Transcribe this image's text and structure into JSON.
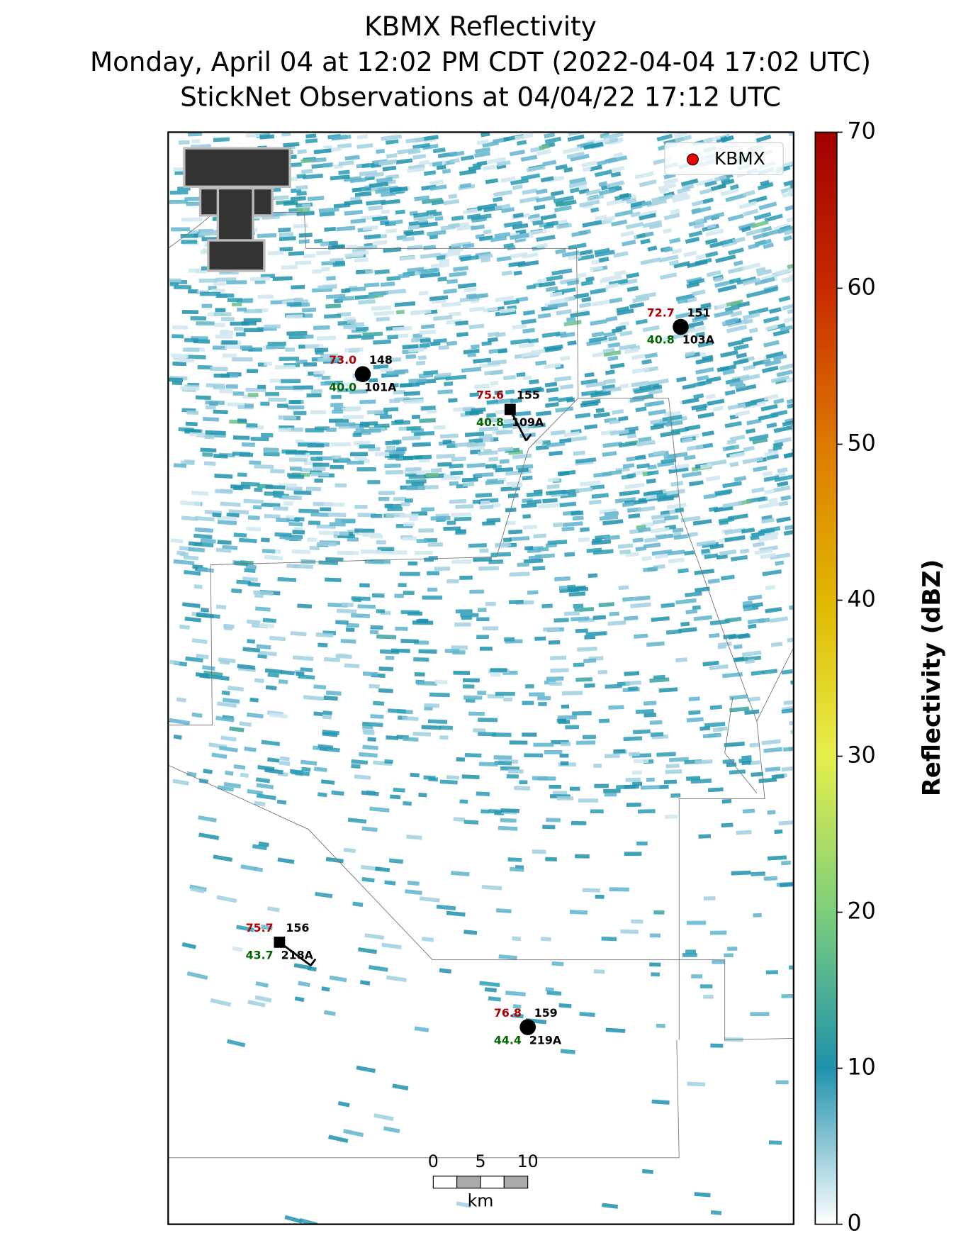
{
  "title": [
    "KBMX Reflectivity",
    "Monday, April 04 at 12:02 PM CDT (2022-04-04 17:02 UTC)",
    "StickNet Observations at 04/04/22 17:12 UTC"
  ],
  "legend": "KBMX",
  "colorbar": {
    "label": "Reflectivity (dBZ)",
    "lim": [
      0,
      70
    ],
    "ticks": [
      0,
      10,
      20,
      30,
      40,
      50,
      60,
      70
    ]
  },
  "stations": [
    {
      "id": "101A",
      "temperature": 73.0,
      "dewpoint": 40.0,
      "pressure": 148
    },
    {
      "id": "109A",
      "temperature": 75.6,
      "dewpoint": 40.8,
      "pressure": 155
    },
    {
      "id": "103A",
      "temperature": 72.7,
      "dewpoint": 40.8,
      "pressure": 151
    },
    {
      "id": "218A",
      "temperature": 75.7,
      "dewpoint": 43.7,
      "pressure": 156
    },
    {
      "id": "219A",
      "temperature": 76.8,
      "dewpoint": 44.4,
      "pressure": 159
    }
  ],
  "scale_bar": {
    "ticks": [
      0,
      5,
      10
    ],
    "lim": [
      0,
      10
    ],
    "unit": "km"
  }
}
